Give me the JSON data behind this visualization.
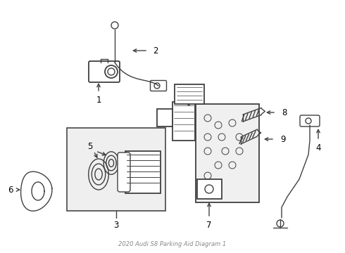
{
  "bg_color": "#ffffff",
  "line_color": "#404040",
  "text_color": "#000000",
  "label_fontsize": 8.5,
  "figsize": [
    4.9,
    3.6
  ],
  "dpi": 100
}
